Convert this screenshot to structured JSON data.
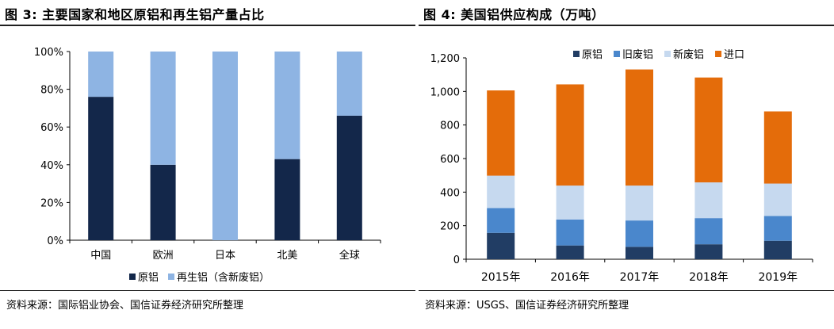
{
  "figures": [
    {
      "title": "图 3: 主要国家和地区原铝和再生铝产量占比",
      "source": "资料来源：国际铝业协会、国信证券经济研究所整理"
    },
    {
      "title": "图 4: 美国铝供应构成（万吨）",
      "source": "资料来源：USGS、国信证券经济研究所整理"
    }
  ],
  "chart_data": [
    {
      "type": "bar",
      "stacked": true,
      "percent": true,
      "categories": [
        "中国",
        "欧洲",
        "日本",
        "北美",
        "全球"
      ],
      "series": [
        {
          "name": "原铝",
          "color": "#13274a",
          "values": [
            76,
            40,
            0,
            43,
            66
          ]
        },
        {
          "name": "再生铝（含新废铝）",
          "color": "#8eb4e3",
          "values": [
            24,
            60,
            100,
            57,
            34
          ]
        }
      ],
      "yticks": [
        "0%",
        "20%",
        "40%",
        "60%",
        "80%",
        "100%"
      ],
      "ylim": [
        0,
        100
      ],
      "grid": false,
      "legend": "bottom"
    },
    {
      "type": "bar",
      "stacked": true,
      "categories": [
        "2015年",
        "2016年",
        "2017年",
        "2018年",
        "2019年"
      ],
      "series": [
        {
          "name": "原铝",
          "color": "#213d64",
          "values": [
            157,
            82,
            74,
            89,
            110
          ]
        },
        {
          "name": "旧废铝",
          "color": "#4a87cc",
          "values": [
            148,
            155,
            157,
            156,
            148
          ]
        },
        {
          "name": "新废铝",
          "color": "#c6d9ef",
          "values": [
            193,
            202,
            208,
            213,
            193
          ]
        },
        {
          "name": "进口",
          "color": "#e46c0a",
          "values": [
            508,
            603,
            692,
            625,
            430
          ]
        }
      ],
      "yticks": [
        "0",
        "200",
        "400",
        "600",
        "800",
        "1,000",
        "1,200"
      ],
      "ylim": [
        0,
        1200
      ],
      "grid": false,
      "legend": "top"
    }
  ]
}
